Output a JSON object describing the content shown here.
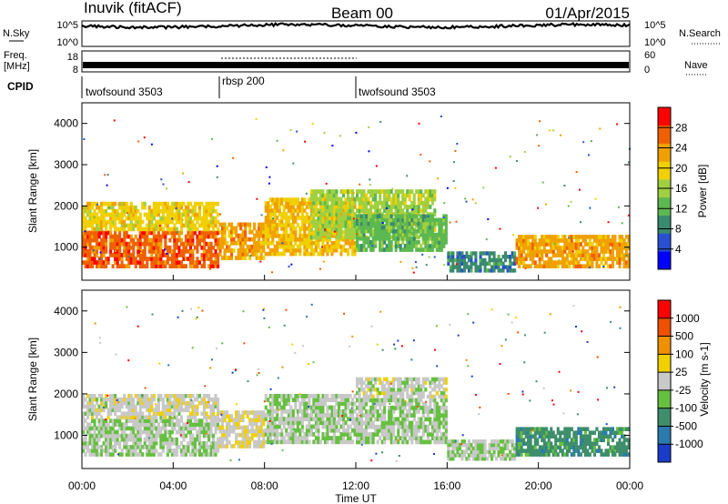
{
  "header": {
    "station": "Inuvik (fitACF)",
    "beam": "Beam 00",
    "date": "01/Apr/2015"
  },
  "top_panels": {
    "nsky_label": "N.Sky",
    "nsky_ticks": [
      "10^5",
      "10^0"
    ],
    "nsky_right_ticks": [
      "10^5",
      "10^0"
    ],
    "nsearch_label": "N.Search",
    "freq_label": "Freq.",
    "freq_unit": "[MHz]",
    "freq_ticks": [
      "18",
      "8"
    ],
    "nave_ticks": [
      "60",
      "0"
    ],
    "nave_label": "Nave",
    "cpid_label": "CPID",
    "cpid_segments": [
      {
        "name": "twofsound 3503",
        "start": "00:00",
        "end": "06:00"
      },
      {
        "name": "rbsp 200",
        "start": "06:00",
        "end": "12:00"
      },
      {
        "name": "twofsound 3503",
        "start": "12:00",
        "end": "24:00"
      }
    ]
  },
  "x_axis": {
    "label": "Time UT",
    "ticks": [
      "00:00",
      "04:00",
      "08:00",
      "12:00",
      "16:00",
      "20:00",
      "00:00"
    ]
  },
  "power_panel": {
    "ylabel": "Slant Range [km]",
    "yticks": [
      "4000",
      "3000",
      "2000",
      "1000"
    ],
    "colorbar_label": "Power [dB]",
    "colorbar_ticks": [
      "28",
      "24",
      "20",
      "16",
      "12",
      "8",
      "4"
    ],
    "colors": [
      "#0000ff",
      "#2850d0",
      "#3a8a70",
      "#5cb850",
      "#a0d040",
      "#f0d000",
      "#f0a000",
      "#f06000",
      "#ff0000"
    ]
  },
  "velocity_panel": {
    "ylabel": "Slant Range [km]",
    "yticks": [
      "4000",
      "3000",
      "2000",
      "1000"
    ],
    "colorbar_label": "Velocity  [m s-1]",
    "colorbar_ticks": [
      "1000",
      "500",
      "100",
      "25",
      "-25",
      "-100",
      "-500",
      "-1000"
    ],
    "colors": [
      "#1a3cc8",
      "#2a7ab0",
      "#3e8e6c",
      "#66c040",
      "#c8c8c8",
      "#f0d000",
      "#f09000",
      "#f05000",
      "#ff0000"
    ]
  },
  "chart_data": [
    {
      "type": "heatmap",
      "title": "",
      "xlabel": "Time UT",
      "ylabel": "Slant Range [km]",
      "xlim": [
        0,
        24
      ],
      "ylim": [
        200,
        4500
      ],
      "colorbar": "Power [dB]",
      "value_range": [
        0,
        32
      ],
      "patches": [
        {
          "t0": 0.0,
          "t1": 6.0,
          "r0": 500,
          "r1": 1400,
          "value": 28
        },
        {
          "t0": 0.0,
          "t1": 6.0,
          "r0": 1400,
          "r1": 2100,
          "value": 20
        },
        {
          "t0": 6.0,
          "t1": 8.0,
          "r0": 700,
          "r1": 1600,
          "value": 24
        },
        {
          "t0": 8.0,
          "t1": 12.0,
          "r0": 800,
          "r1": 2200,
          "value": 22
        },
        {
          "t0": 10.0,
          "t1": 15.5,
          "r0": 1200,
          "r1": 2400,
          "value": 16
        },
        {
          "t0": 12.0,
          "t1": 16.0,
          "r0": 900,
          "r1": 1800,
          "value": 12
        },
        {
          "t0": 16.0,
          "t1": 19.0,
          "r0": 400,
          "r1": 900,
          "value": 8
        },
        {
          "t0": 19.0,
          "t1": 24.0,
          "r0": 500,
          "r1": 1300,
          "value": 24
        }
      ]
    },
    {
      "type": "heatmap",
      "title": "",
      "xlabel": "Time UT",
      "ylabel": "Slant Range [km]",
      "xlim": [
        0,
        24
      ],
      "ylim": [
        200,
        4500
      ],
      "colorbar": "Velocity [m s-1]",
      "value_range": [
        -1000,
        1000
      ],
      "patches": [
        {
          "t0": 0.0,
          "t1": 6.0,
          "r0": 500,
          "r1": 1400,
          "value": -100
        },
        {
          "t0": 0.0,
          "t1": 6.0,
          "r0": 1400,
          "r1": 2000,
          "value": 25
        },
        {
          "t0": 6.0,
          "t1": 8.0,
          "r0": 700,
          "r1": 1600,
          "value": 100
        },
        {
          "t0": 8.0,
          "t1": 12.0,
          "r0": 800,
          "r1": 2000,
          "value": -100
        },
        {
          "t0": 12.0,
          "t1": 16.0,
          "r0": 800,
          "r1": 1900,
          "value": -100
        },
        {
          "t0": 12.0,
          "t1": 16.0,
          "r0": 1900,
          "r1": 2400,
          "value": 0
        },
        {
          "t0": 16.0,
          "t1": 19.0,
          "r0": 400,
          "r1": 900,
          "value": -100
        },
        {
          "t0": 19.0,
          "t1": 24.0,
          "r0": 500,
          "r1": 1200,
          "value": -500
        }
      ]
    }
  ]
}
